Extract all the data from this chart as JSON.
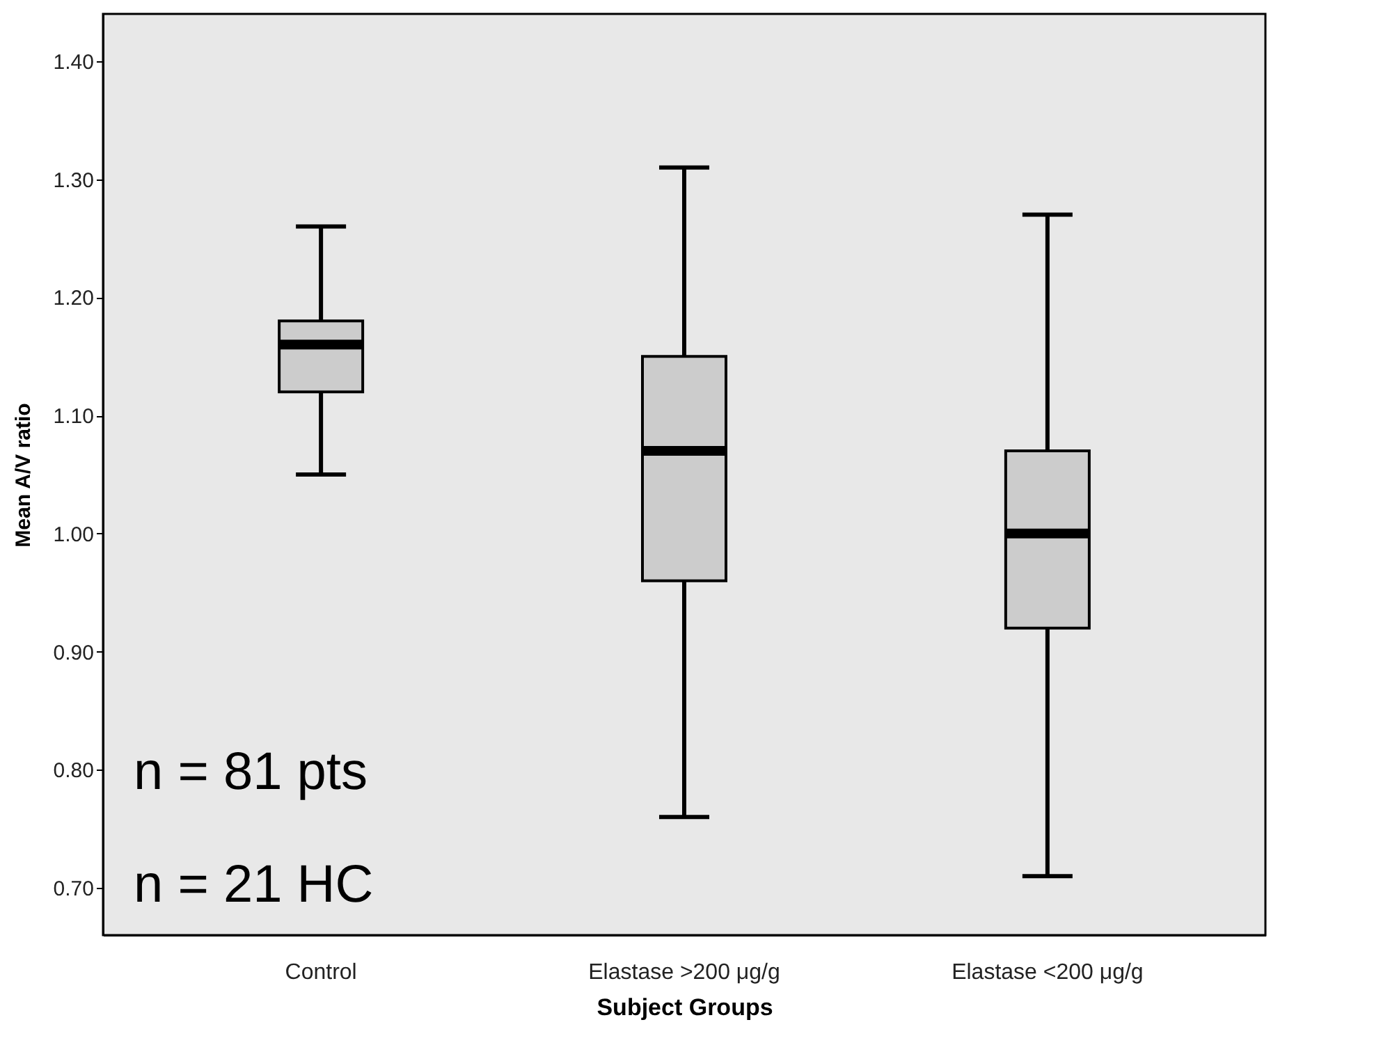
{
  "chart_data": {
    "type": "box",
    "xlabel": "Subject Groups",
    "ylabel": "Mean A/V ratio",
    "categories": [
      "Control",
      "Elastase >200 μg/g",
      "Elastase <200 μg/g"
    ],
    "boxes": [
      {
        "low": 1.05,
        "q1": 1.12,
        "median": 1.16,
        "q3": 1.18,
        "high": 1.26
      },
      {
        "low": 0.76,
        "q1": 0.96,
        "median": 1.07,
        "q3": 1.15,
        "high": 1.31
      },
      {
        "low": 0.71,
        "q1": 0.92,
        "median": 1.0,
        "q3": 1.07,
        "high": 1.27
      }
    ],
    "color": "#cccccc",
    "ylim": [
      0.66,
      1.44
    ],
    "yticks": [
      {
        "value": 0.7,
        "label": "0.70"
      },
      {
        "value": 0.8,
        "label": "0.80"
      },
      {
        "value": 0.9,
        "label": "0.90"
      },
      {
        "value": 1.0,
        "label": "1.00"
      },
      {
        "value": 1.1,
        "label": "1.10"
      },
      {
        "value": 1.2,
        "label": "1.20"
      },
      {
        "value": 1.3,
        "label": "1.30"
      },
      {
        "value": 1.4,
        "label": "1.40"
      }
    ],
    "grid": false,
    "annotations": [
      "n = 81 pts",
      "n = 21 HC"
    ]
  }
}
